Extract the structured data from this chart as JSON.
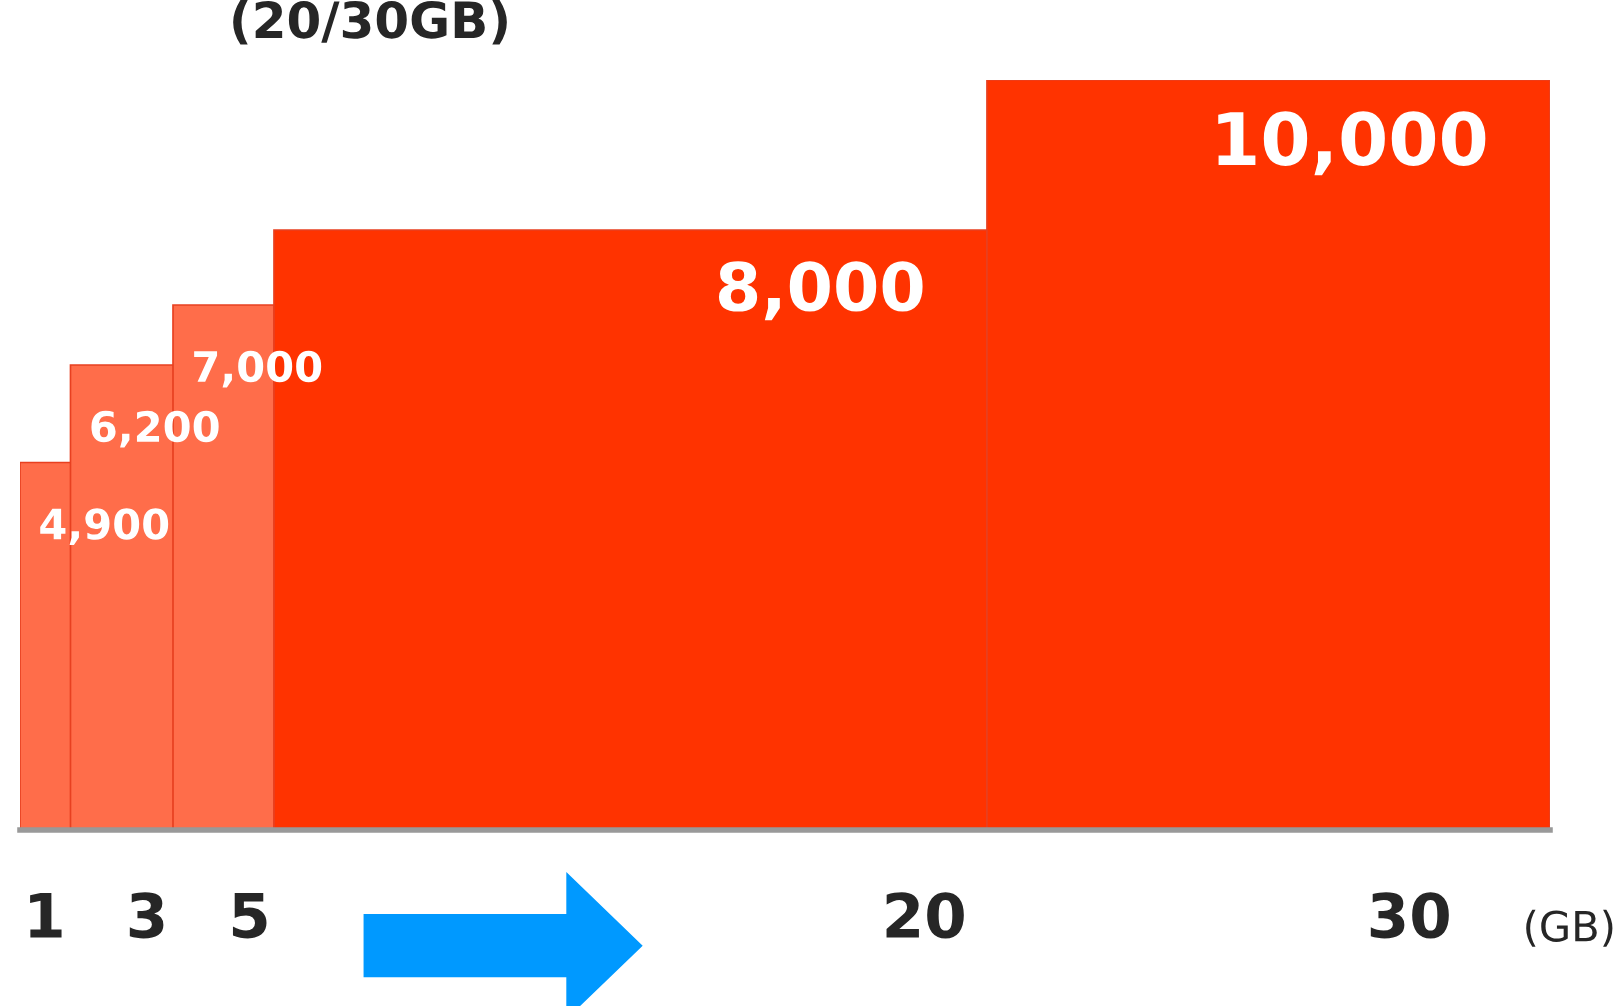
{
  "chart_data": {
    "type": "bar",
    "title": "(20/30GB)",
    "xlabel": "(GB)",
    "categories": [
      "1",
      "3",
      "5",
      "20",
      "30"
    ],
    "values": [
      4900,
      6200,
      7000,
      8000,
      10000
    ],
    "colors": [
      "#ff6d4a",
      "#ff6d4a",
      "#ff6d4a",
      "#ff3300",
      "#ff3300"
    ],
    "value_labels": [
      "4,900",
      "6,200",
      "7,000",
      "8,000",
      "10,000"
    ],
    "grid": false,
    "legend": false
  }
}
